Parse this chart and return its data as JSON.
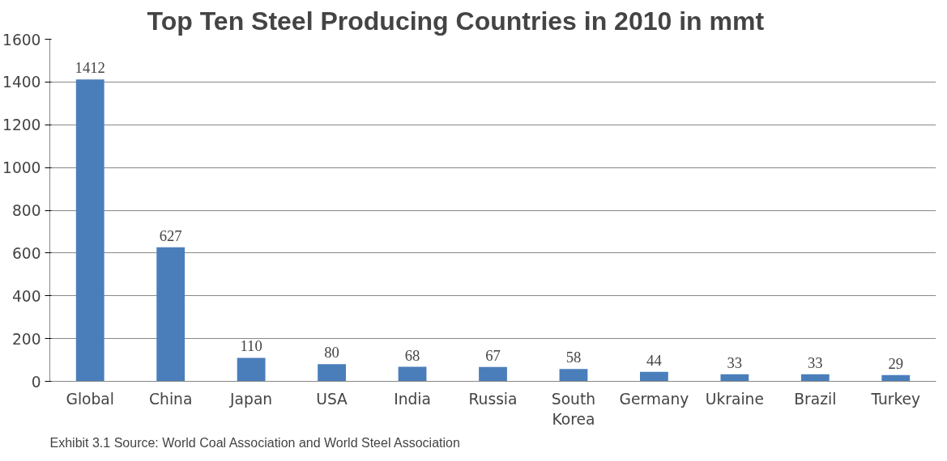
{
  "chart_data": {
    "type": "bar",
    "title": "Top Ten Steel Producing Countries in 2010 in mmt",
    "categories": [
      "Global",
      "China",
      "Japan",
      "USA",
      "India",
      "Russia",
      "South Korea",
      "Germany",
      "Ukraine",
      "Brazil",
      "Turkey"
    ],
    "values": [
      1412,
      627,
      110,
      80,
      68,
      67,
      58,
      44,
      33,
      33,
      29
    ],
    "color": "#4a7ebb",
    "ylim": [
      0,
      1600
    ],
    "yticks": [
      0,
      200,
      400,
      600,
      800,
      1000,
      1200,
      1400,
      1600
    ],
    "grid": "y",
    "data_labels": true,
    "annotations": [
      "Exhibit 3.1 Source: World Coal Association and World Steel Association"
    ]
  }
}
